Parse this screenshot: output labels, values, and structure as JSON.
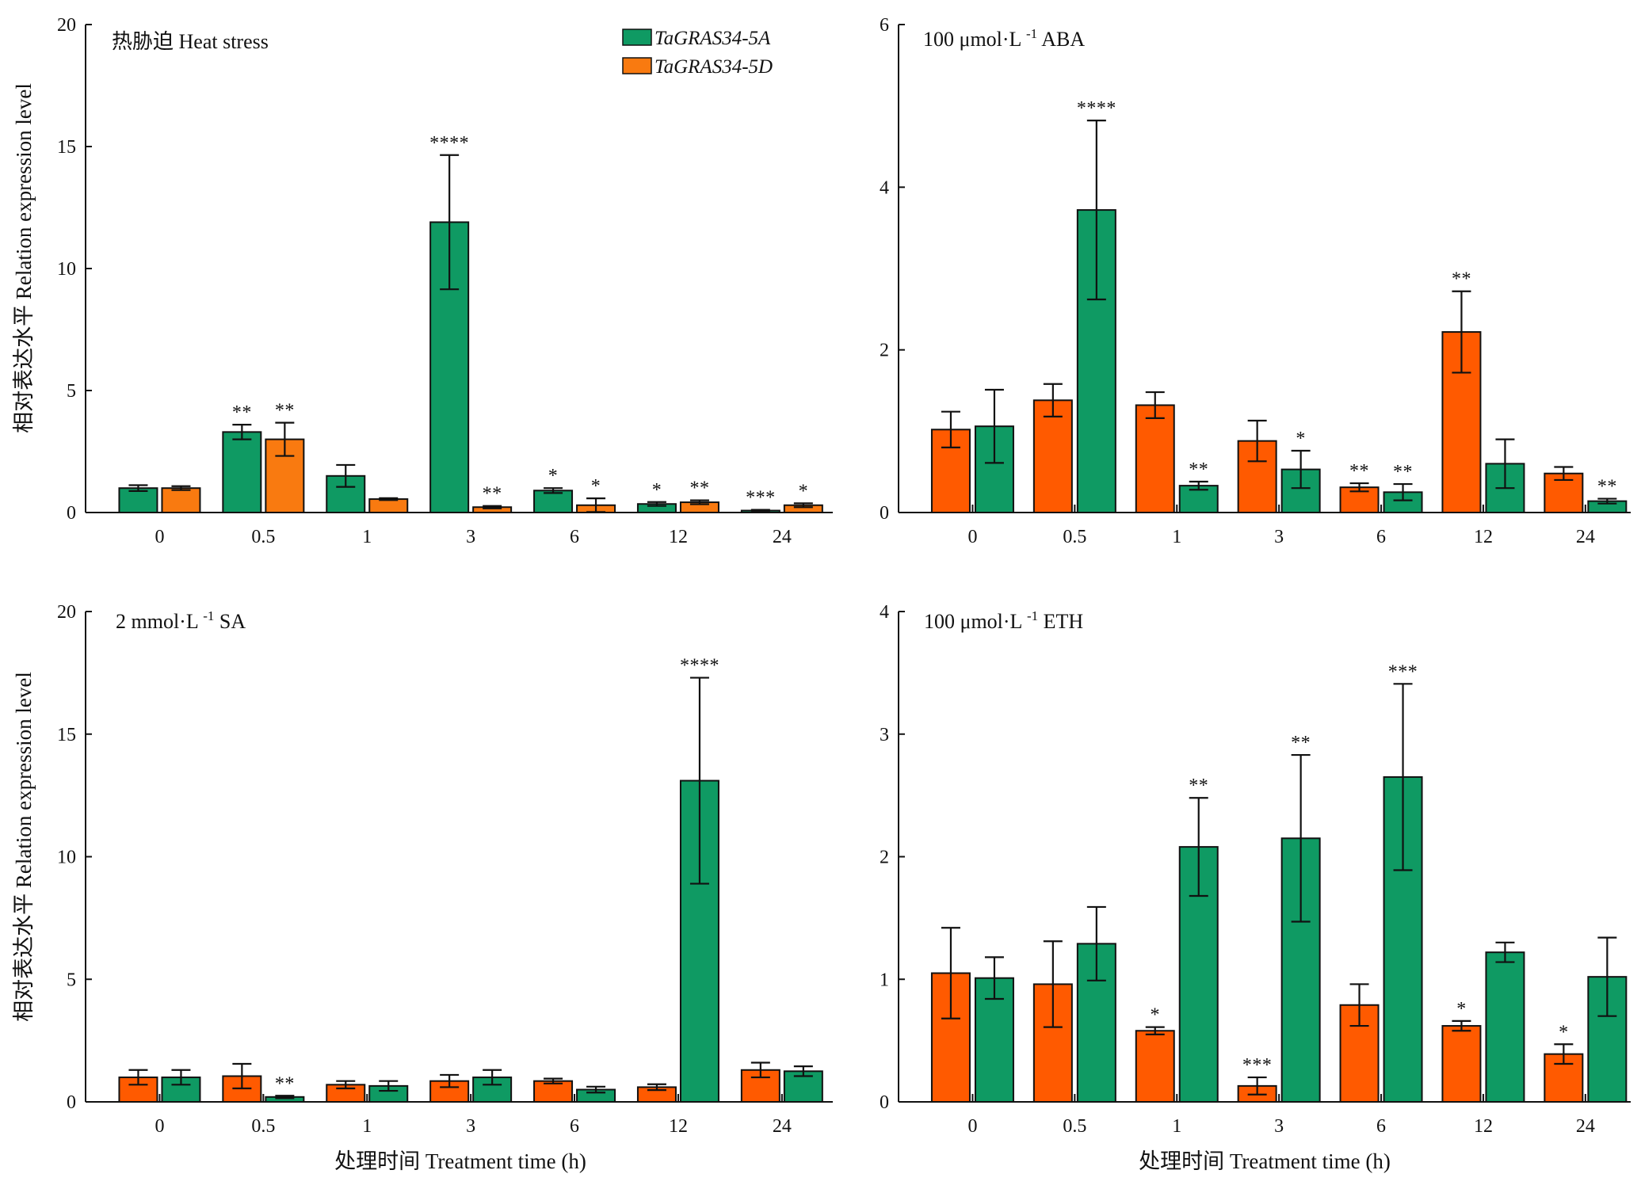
{
  "figure": {
    "legend": [
      {
        "label": "TaGRAS34-5A",
        "color": "#0f9a63"
      },
      {
        "label": "TaGRAS34-5D",
        "color": "#f97a10"
      }
    ],
    "colors": {
      "green": "#0f9a63",
      "orange_light": "#f97a10",
      "orange_dark": "#ff5a00",
      "axis": "#111111"
    }
  },
  "chart_data": [
    {
      "type": "bar",
      "title": "热胁迫 Heat stress",
      "xlabel": "",
      "ylabel": "相对表达水平 Relation expression level",
      "categories": [
        "0",
        "0.5",
        "1",
        "3",
        "6",
        "12",
        "24"
      ],
      "ylim": [
        0,
        20
      ],
      "yticks": [
        0,
        5,
        10,
        15,
        20
      ],
      "legend_position": "top-right",
      "series": [
        {
          "name": "TaGRAS34-5A",
          "color": "#0f9a63",
          "values": [
            1.0,
            3.3,
            1.5,
            11.9,
            0.9,
            0.35,
            0.08
          ],
          "errors": [
            0.12,
            0.3,
            0.45,
            2.75,
            0.1,
            0.08,
            0.03
          ],
          "significance": [
            "",
            "**",
            "",
            "****",
            "*",
            "*",
            "***"
          ]
        },
        {
          "name": "TaGRAS34-5D",
          "color": "#f97a10",
          "values": [
            1.0,
            3.0,
            0.55,
            0.22,
            0.3,
            0.42,
            0.3
          ],
          "errors": [
            0.08,
            0.68,
            0.04,
            0.05,
            0.28,
            0.08,
            0.08
          ],
          "significance": [
            "",
            "**",
            "",
            "**",
            "*",
            "**",
            "*"
          ]
        }
      ]
    },
    {
      "type": "bar",
      "title": "100 μmol·L-1 ABA",
      "xlabel": "",
      "ylabel": "",
      "categories": [
        "0",
        "0.5",
        "1",
        "3",
        "6",
        "12",
        "24"
      ],
      "ylim": [
        0,
        6
      ],
      "yticks": [
        0,
        2,
        4,
        6
      ],
      "series": [
        {
          "name": "TaGRAS34-5D",
          "color": "#ff5a00",
          "values": [
            1.02,
            1.38,
            1.32,
            0.88,
            0.31,
            2.22,
            0.48
          ],
          "errors": [
            0.22,
            0.2,
            0.16,
            0.25,
            0.05,
            0.5,
            0.08
          ],
          "significance": [
            "",
            "",
            "",
            "",
            "**",
            "**",
            ""
          ]
        },
        {
          "name": "TaGRAS34-5A",
          "color": "#0f9a63",
          "values": [
            1.06,
            3.72,
            0.33,
            0.53,
            0.25,
            0.6,
            0.14
          ],
          "errors": [
            0.45,
            1.1,
            0.05,
            0.23,
            0.1,
            0.3,
            0.03
          ],
          "significance": [
            "",
            "****",
            "**",
            "*",
            "**",
            "",
            "**"
          ]
        }
      ]
    },
    {
      "type": "bar",
      "title": "2 mmol·L-1 SA",
      "xlabel": "处理时间 Treatment time (h)",
      "ylabel": "相对表达水平 Relation expression level",
      "categories": [
        "0",
        "0.5",
        "1",
        "3",
        "6",
        "12",
        "24"
      ],
      "ylim": [
        0,
        20
      ],
      "yticks": [
        0,
        5,
        10,
        15,
        20
      ],
      "series": [
        {
          "name": "TaGRAS34-5D",
          "color": "#ff5a00",
          "values": [
            1.0,
            1.05,
            0.7,
            0.85,
            0.85,
            0.6,
            1.3
          ],
          "errors": [
            0.3,
            0.5,
            0.15,
            0.25,
            0.1,
            0.12,
            0.3
          ],
          "significance": [
            "",
            "",
            "",
            "",
            "",
            "",
            ""
          ]
        },
        {
          "name": "TaGRAS34-5A",
          "color": "#0f9a63",
          "values": [
            1.0,
            0.2,
            0.65,
            1.0,
            0.5,
            13.1,
            1.25
          ],
          "errors": [
            0.3,
            0.05,
            0.2,
            0.3,
            0.12,
            4.2,
            0.2
          ],
          "significance": [
            "",
            "**",
            "",
            "",
            "",
            "****",
            ""
          ]
        }
      ]
    },
    {
      "type": "bar",
      "title": "100 μmol·L-1 ETH",
      "xlabel": "处理时间 Treatment time (h)",
      "ylabel": "",
      "categories": [
        "0",
        "0.5",
        "1",
        "3",
        "6",
        "12",
        "24"
      ],
      "ylim": [
        0,
        4
      ],
      "yticks": [
        0,
        1,
        2,
        3,
        4
      ],
      "series": [
        {
          "name": "TaGRAS34-5D",
          "color": "#ff5a00",
          "values": [
            1.05,
            0.96,
            0.58,
            0.13,
            0.79,
            0.62,
            0.39
          ],
          "errors": [
            0.37,
            0.35,
            0.03,
            0.07,
            0.17,
            0.04,
            0.08
          ],
          "significance": [
            "",
            "",
            "*",
            "***",
            "",
            "*",
            "*"
          ]
        },
        {
          "name": "TaGRAS34-5A",
          "color": "#0f9a63",
          "values": [
            1.01,
            1.29,
            2.08,
            2.15,
            2.65,
            1.22,
            1.02
          ],
          "errors": [
            0.17,
            0.3,
            0.4,
            0.68,
            0.76,
            0.08,
            0.32
          ],
          "significance": [
            "",
            "",
            "**",
            "**",
            "***",
            "",
            ""
          ]
        }
      ]
    }
  ]
}
